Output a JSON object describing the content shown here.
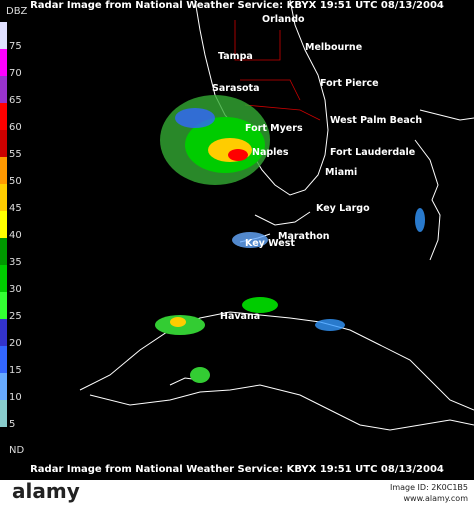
{
  "header": "Radar Image from National Weather Service: KBYX  19:51  UTC  08/13/2004",
  "footer": "Radar Image from National Weather Service: KBYX  19:51  UTC  08/13/2004",
  "legend": {
    "title": "DBZ",
    "ticks": [
      75,
      70,
      65,
      60,
      55,
      50,
      45,
      40,
      35,
      30,
      25,
      20,
      15,
      10,
      5
    ],
    "colors": [
      "#e0e0ff",
      "#ff00ff",
      "#9933cc",
      "#ff0000",
      "#cc0000",
      "#ff9900",
      "#ffcc00",
      "#ffff00",
      "#009900",
      "#00cc00",
      "#33ff33",
      "#3333cc",
      "#3366ff",
      "#66aaff",
      "#88cccc"
    ],
    "nd_label": "ND"
  },
  "cities": [
    "Orlando",
    "Melbourne",
    "Tampa",
    "Fort Pierce",
    "Sarasota",
    "West Palm Beach",
    "Fort Myers",
    "Naples",
    "Fort Lauderdale",
    "Miami",
    "Key Largo",
    "Marathon",
    "Key West",
    "Havana"
  ],
  "watermark": {
    "brand": "alamy",
    "image_id": "Image ID: 2K0C1B5",
    "site": "www.alamy.com"
  }
}
